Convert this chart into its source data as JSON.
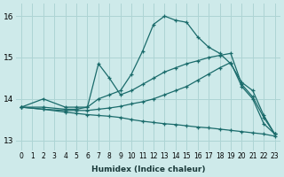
{
  "xlabel": "Humidex (Indice chaleur)",
  "bg_color": "#ceeaea",
  "line_color": "#1a6b6b",
  "grid_color": "#add4d4",
  "xlim": [
    -0.5,
    23.5
  ],
  "ylim": [
    12.75,
    16.3
  ],
  "yticks": [
    13,
    14,
    15,
    16
  ],
  "xticks": [
    0,
    1,
    2,
    3,
    4,
    5,
    6,
    7,
    8,
    9,
    10,
    11,
    12,
    13,
    14,
    15,
    16,
    17,
    18,
    19,
    20,
    21,
    22,
    23
  ],
  "series": [
    {
      "x": [
        0,
        2,
        4,
        5,
        6,
        7,
        8,
        9,
        10,
        11,
        12,
        13,
        14,
        15,
        16,
        17,
        18,
        19,
        20,
        21,
        22,
        23
      ],
      "y": [
        13.8,
        14.0,
        13.8,
        13.8,
        13.8,
        14.0,
        14.1,
        14.2,
        14.6,
        15.15,
        15.8,
        16.0,
        15.9,
        15.85,
        15.5,
        15.25,
        15.1,
        14.85,
        14.4,
        14.2,
        13.6,
        13.15
      ]
    },
    {
      "x": [
        0,
        2,
        4,
        5,
        6,
        7,
        8,
        9,
        10,
        11,
        12,
        13,
        14,
        15,
        16,
        17,
        18,
        19,
        20,
        21,
        22,
        23
      ],
      "y": [
        13.8,
        13.8,
        13.75,
        13.75,
        13.8,
        14.85,
        14.5,
        14.1,
        14.2,
        14.35,
        14.5,
        14.65,
        14.75,
        14.85,
        14.92,
        15.0,
        15.05,
        15.1,
        14.35,
        14.05,
        13.55,
        13.15
      ]
    },
    {
      "x": [
        0,
        2,
        4,
        5,
        6,
        7,
        8,
        9,
        10,
        11,
        12,
        13,
        14,
        15,
        16,
        17,
        18,
        19,
        20,
        21,
        22,
        23
      ],
      "y": [
        13.8,
        13.75,
        13.72,
        13.72,
        13.72,
        13.75,
        13.78,
        13.82,
        13.88,
        13.93,
        14.0,
        14.1,
        14.2,
        14.3,
        14.45,
        14.6,
        14.75,
        14.88,
        14.3,
        14.0,
        13.4,
        13.15
      ]
    },
    {
      "x": [
        0,
        2,
        4,
        5,
        6,
        7,
        8,
        9,
        10,
        11,
        12,
        13,
        14,
        15,
        16,
        17,
        18,
        19,
        20,
        21,
        22,
        23
      ],
      "y": [
        13.8,
        13.75,
        13.68,
        13.65,
        13.62,
        13.6,
        13.58,
        13.55,
        13.5,
        13.46,
        13.43,
        13.4,
        13.38,
        13.35,
        13.32,
        13.3,
        13.27,
        13.24,
        13.21,
        13.18,
        13.15,
        13.1
      ]
    }
  ]
}
